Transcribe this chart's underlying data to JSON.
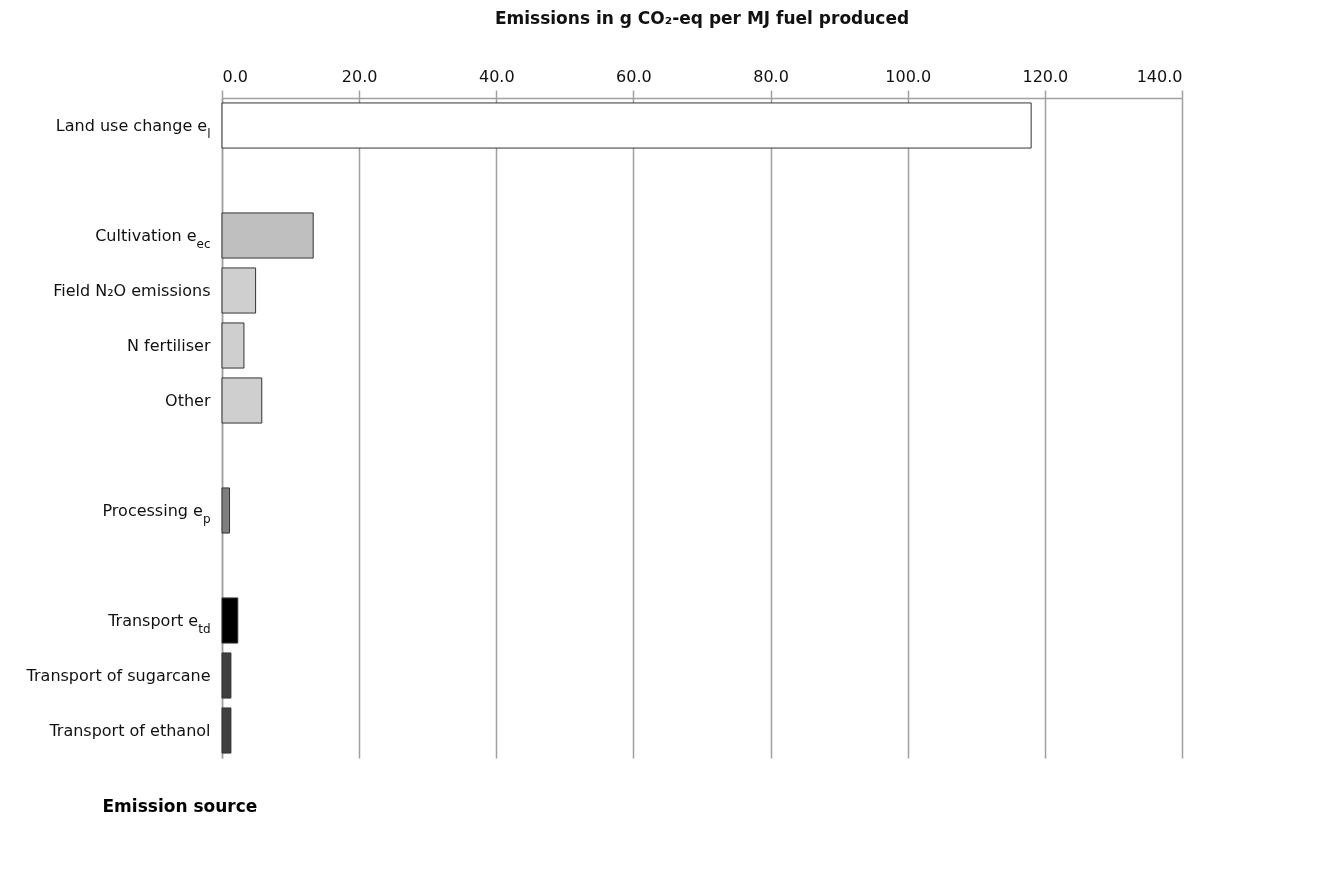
{
  "chart_data": {
    "type": "bar",
    "orientation": "horizontal",
    "title": "Emissions in g CO₂-eq per MJ fuel produced",
    "ylabel": "Emission source",
    "categories": [
      "Land use change e$_{l}$",
      null,
      "Cultivation e$_{ec}$",
      "Field N₂O emissions",
      "N fertiliser",
      "Other",
      null,
      "Processing e$_{p}$",
      null,
      "Transport e$_{td}$",
      "Transport of sugarcane",
      "Transport of ethanol"
    ],
    "values": [
      118.0,
      null,
      13.3,
      4.9,
      3.2,
      5.8,
      null,
      1.1,
      null,
      2.3,
      1.3,
      1.3
    ],
    "colors": [
      "#ffffff",
      "#ffffff",
      "#bfbfbf",
      "#cfcfcf",
      "#cfcfcf",
      "#cfcfcf",
      "#ffffff",
      "#7f7f7f",
      "#ffffff",
      "#000000",
      "#404040",
      "#404040"
    ],
    "xlim": [
      0,
      140
    ],
    "xticks": [
      {
        "value": 0,
        "label": "0.0"
      },
      {
        "value": 20,
        "label": "20.0"
      },
      {
        "value": 40,
        "label": "40.0"
      },
      {
        "value": 60,
        "label": "60.0"
      },
      {
        "value": 80,
        "label": "80.0"
      },
      {
        "value": 100,
        "label": "100.0"
      },
      {
        "value": 120,
        "label": "120.0"
      },
      {
        "value": 140,
        "label": "140.0"
      }
    ],
    "grid": "x",
    "legend": false
  }
}
